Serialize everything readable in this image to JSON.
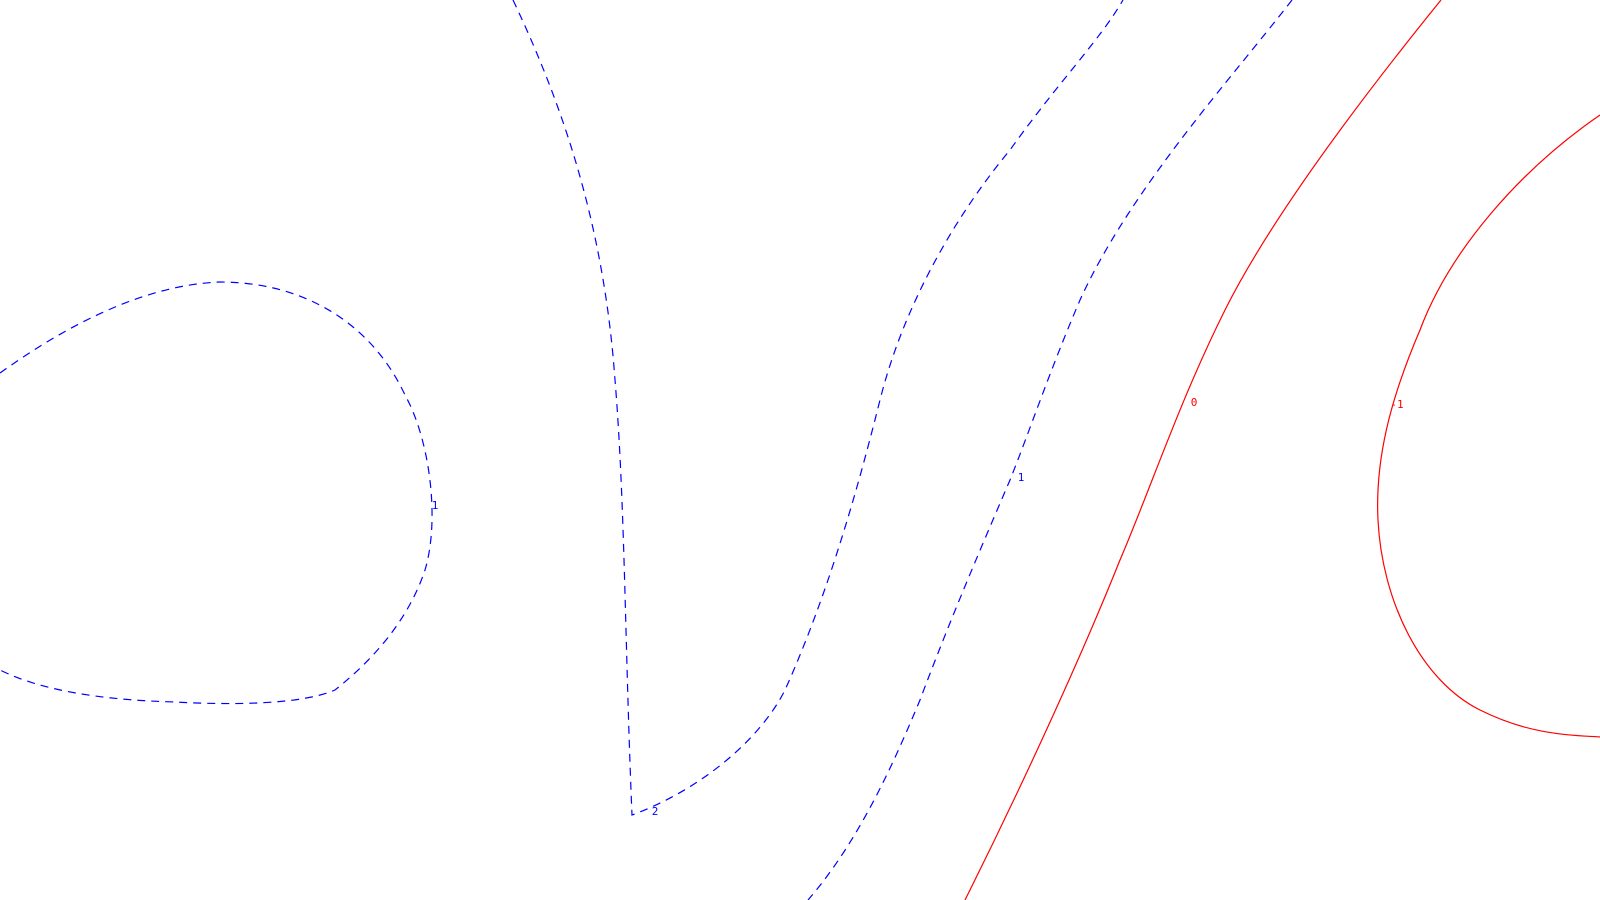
{
  "chart_data": {
    "type": "contour",
    "title": "",
    "xlabel": "",
    "ylabel": "",
    "grid": false,
    "legend": "none",
    "colors": {
      "positive": "#0000ff",
      "negative": "#ff0000"
    },
    "levels": [
      {
        "id": "c1",
        "value": 1,
        "label": "1",
        "sign": "positive",
        "linestyle": "dashed"
      },
      {
        "id": "c2",
        "value": 2,
        "label": "2",
        "sign": "positive",
        "linestyle": "dashed"
      },
      {
        "id": "c3",
        "value": 1,
        "label": "1",
        "sign": "positive",
        "linestyle": "dashed"
      },
      {
        "id": "c4",
        "value": 0,
        "label": "0",
        "sign": "negative",
        "linestyle": "solid"
      },
      {
        "id": "c5",
        "value": -1,
        "label": "-1",
        "sign": "negative",
        "linestyle": "solid"
      }
    ]
  }
}
